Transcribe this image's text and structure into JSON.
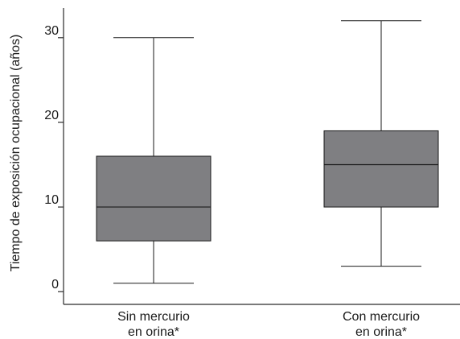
{
  "chart_data": {
    "type": "boxplot",
    "title": "",
    "xlabel": "",
    "ylabel": "Tiempo de exposición ocupacional (años)",
    "ylim": [
      -1.5,
      33.5
    ],
    "yticks": [
      0,
      10,
      20,
      30
    ],
    "grid": false,
    "box_color": "#7f7f82",
    "line_color": "#1a1a1a",
    "categories": [
      {
        "lines": [
          "Sin mercurio",
          "en orina*"
        ]
      },
      {
        "lines": [
          "Con mercurio",
          "en orina*"
        ]
      }
    ],
    "boxes": [
      {
        "min": 1,
        "q1": 6,
        "median": 10,
        "q3": 16,
        "max": 30
      },
      {
        "min": 3,
        "q1": 10,
        "median": 15,
        "q3": 19,
        "max": 32
      }
    ]
  }
}
